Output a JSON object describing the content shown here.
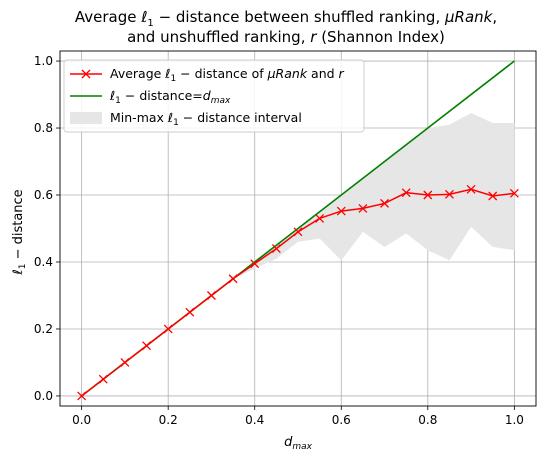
{
  "chart_data": {
    "type": "line",
    "title_lines": [
      "Average ℓ₁ − distance between shuffled ranking, μRank,",
      "and unshuffled ranking, r (Shannon Index)"
    ],
    "xlabel": "d_max",
    "ylabel": "ℓ₁ − distance",
    "xlim": [
      -0.05,
      1.05
    ],
    "ylim": [
      -0.03,
      1.03
    ],
    "xticks": [
      0.0,
      0.2,
      0.4,
      0.6,
      0.8,
      1.0
    ],
    "xtick_labels": [
      "0.0",
      "0.2",
      "0.4",
      "0.6",
      "0.8",
      "1.0"
    ],
    "yticks": [
      0.0,
      0.2,
      0.4,
      0.6,
      0.8,
      1.0
    ],
    "ytick_labels": [
      "0.0",
      "0.2",
      "0.4",
      "0.6",
      "0.8",
      "1.0"
    ],
    "grid": true,
    "legend_position": "top-left",
    "x": [
      0.0,
      0.05,
      0.1,
      0.15,
      0.2,
      0.25,
      0.3,
      0.35,
      0.4,
      0.45,
      0.5,
      0.55,
      0.6,
      0.65,
      0.7,
      0.75,
      0.8,
      0.85,
      0.9,
      0.95,
      1.0
    ],
    "series": [
      {
        "name": "Average ℓ₁ − distance of μRank and r",
        "kind": "line-marker",
        "marker": "x",
        "color": "#ff0000",
        "values": [
          0.0,
          0.05,
          0.1,
          0.15,
          0.2,
          0.25,
          0.3,
          0.35,
          0.395,
          0.44,
          0.49,
          0.53,
          0.552,
          0.56,
          0.575,
          0.607,
          0.6,
          0.602,
          0.617,
          0.597,
          0.605
        ]
      },
      {
        "name": "ℓ₁ − distance=d_max",
        "kind": "line",
        "color": "#008000",
        "x": [
          0.0,
          1.0
        ],
        "values": [
          0.0,
          1.0
        ]
      },
      {
        "name": "Min-max ℓ₁ − distance interval",
        "kind": "band",
        "color": "#e6e6e6",
        "min": [
          0.0,
          0.05,
          0.1,
          0.15,
          0.2,
          0.25,
          0.3,
          0.35,
          0.38,
          0.41,
          0.46,
          0.47,
          0.405,
          0.49,
          0.445,
          0.485,
          0.435,
          0.405,
          0.505,
          0.445,
          0.435
        ],
        "max": [
          0.0,
          0.05,
          0.1,
          0.15,
          0.2,
          0.25,
          0.3,
          0.35,
          0.4,
          0.45,
          0.5,
          0.55,
          0.6,
          0.65,
          0.7,
          0.75,
          0.8,
          0.81,
          0.845,
          0.815,
          0.815
        ]
      }
    ],
    "legend": {
      "entries": [
        {
          "label_prefix": "Average ℓ",
          "label_sub": "1",
          "label_mid": " − distance of ",
          "label_italic": "μRank",
          "label_mid2": " and ",
          "label_italic2": "r"
        },
        {
          "label_prefix": "ℓ",
          "label_sub": "1",
          "label_mid": " − distance=",
          "label_italic": "d",
          "label_sub2": "max"
        },
        {
          "label_prefix": "Min-max ℓ",
          "label_sub": "1",
          "label_mid": " − distance interval"
        }
      ]
    }
  }
}
